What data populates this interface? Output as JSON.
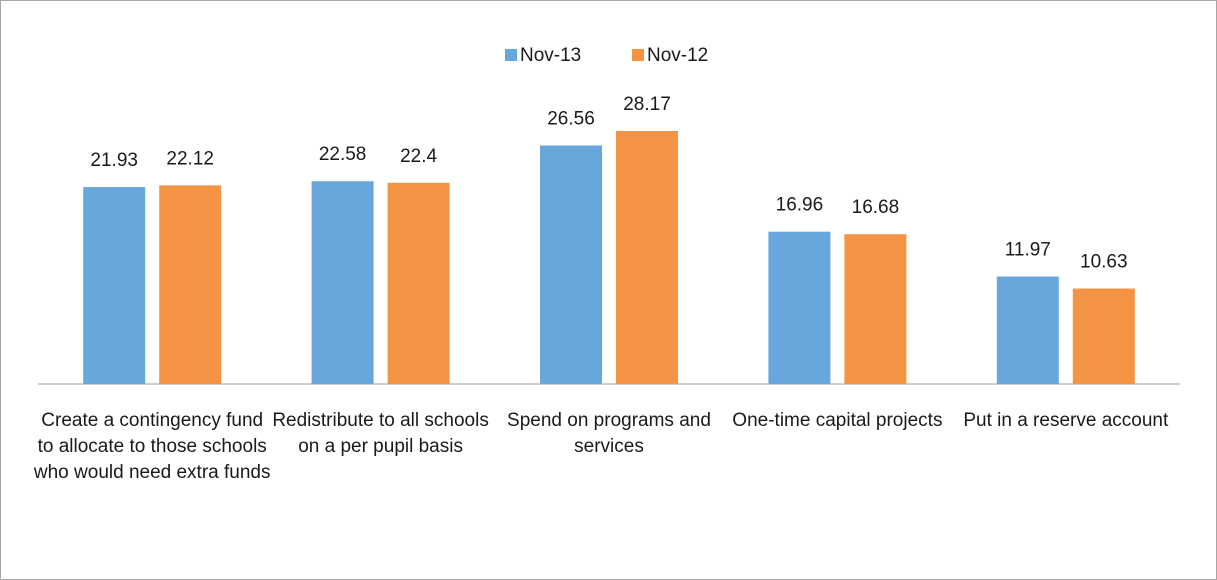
{
  "chart_data": {
    "type": "bar",
    "categories": [
      "Create a contingency fund to allocate to those schools who would need extra funds",
      "Redistribute to all schools on a per pupil basis",
      "Spend on programs and services",
      "One-time capital projects",
      "Put in a reserve account"
    ],
    "series": [
      {
        "name": "Nov-13",
        "color": "#68a7dc",
        "values": [
          21.93,
          22.58,
          26.56,
          16.96,
          11.97
        ]
      },
      {
        "name": "Nov-12",
        "color": "#f39343",
        "values": [
          22.12,
          22.4,
          28.17,
          16.68,
          10.63
        ]
      }
    ],
    "ylim": [
      0,
      30
    ],
    "legend": "top"
  }
}
